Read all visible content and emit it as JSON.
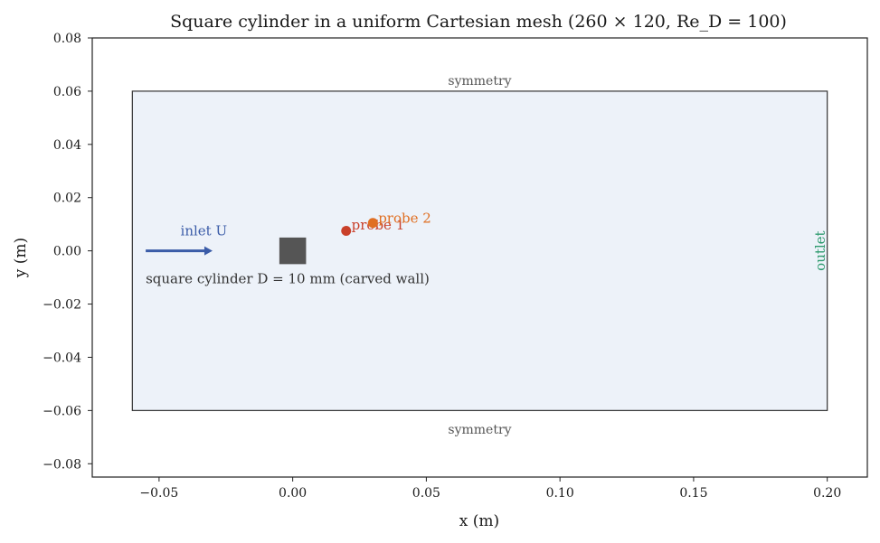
{
  "chart_data": {
    "type": "scatter",
    "title": "Square cylinder in a uniform Cartesian mesh (260 × 120, Re_D = 100)",
    "xlabel": "x (m)",
    "ylabel": "y (m)",
    "xlim": [
      -0.075,
      0.215
    ],
    "ylim": [
      -0.085,
      0.08
    ],
    "xticks": [
      -0.05,
      0.0,
      0.05,
      0.1,
      0.15,
      0.2
    ],
    "xtick_labels": [
      "−0.05",
      "0.00",
      "0.05",
      "0.10",
      "0.15",
      "0.20"
    ],
    "yticks": [
      -0.08,
      -0.06,
      -0.04,
      -0.02,
      0.0,
      0.02,
      0.04,
      0.06,
      0.08
    ],
    "ytick_labels": [
      "−0.08",
      "−0.06",
      "−0.04",
      "−0.02",
      "0.00",
      "0.02",
      "0.04",
      "0.06",
      "0.08"
    ],
    "grid": false,
    "domain": {
      "x": [
        -0.06,
        0.2
      ],
      "y": [
        -0.06,
        0.06
      ],
      "fill": "#edf2f9",
      "stroke": "#333333"
    },
    "cylinder": {
      "center": [
        0.0,
        0.0
      ],
      "size": 0.01,
      "color": "#555555",
      "label": "square cylinder D = 10 mm (carved wall)",
      "label_at": [
        -0.055,
        -0.0105
      ]
    },
    "inlet": {
      "from": [
        -0.055,
        0.0
      ],
      "to": [
        -0.03,
        0.0
      ],
      "label": "inlet U",
      "label_at": [
        -0.042,
        0.0075
      ],
      "color": "#3b5ca8"
    },
    "outlet": {
      "label": "outlet",
      "at": [
        0.197,
        0.0
      ],
      "color": "#2e9a6e"
    },
    "boundaries": [
      {
        "label": "symmetry",
        "at": [
          0.07,
          0.064
        ]
      },
      {
        "label": "symmetry",
        "at": [
          0.07,
          -0.067
        ]
      }
    ],
    "probes": [
      {
        "label": "probe 1",
        "x": 0.02,
        "y": 0.0075,
        "color": "#c9402a",
        "label_at": [
          0.022,
          0.0098
        ]
      },
      {
        "label": "probe 2",
        "x": 0.03,
        "y": 0.0105,
        "color": "#e06f22",
        "label_at": [
          0.032,
          0.0123
        ]
      }
    ]
  }
}
